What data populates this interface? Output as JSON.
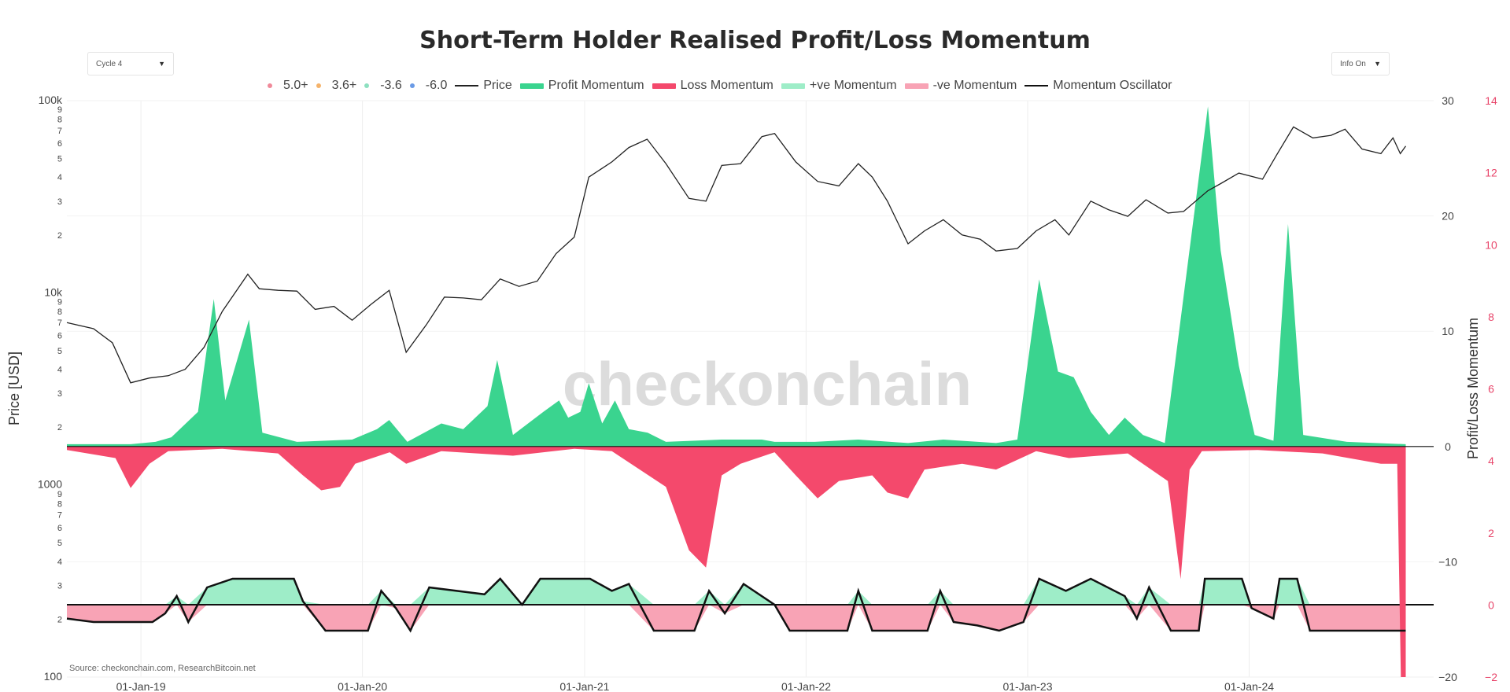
{
  "header": {
    "title": "Short-Term Holder Realised Profit/Loss Momentum",
    "cycle_select": "Cycle 4",
    "info_select": "Info On"
  },
  "legend": [
    {
      "label": "5.0+",
      "kind": "dot",
      "color": "#f08a9a"
    },
    {
      "label": "3.6+",
      "kind": "dot",
      "color": "#f5b36b"
    },
    {
      "label": "-3.6",
      "kind": "dot",
      "color": "#8de0c0"
    },
    {
      "label": "-6.0",
      "kind": "dot",
      "color": "#6a9be6"
    },
    {
      "label": "Price",
      "kind": "line",
      "color": "#222222"
    },
    {
      "label": "Profit Momentum",
      "kind": "thick",
      "color": "#3ad48f"
    },
    {
      "label": "Loss Momentum",
      "kind": "thick",
      "color": "#f4496c"
    },
    {
      "label": "+ve Momentum",
      "kind": "thick",
      "color": "#9eedc8"
    },
    {
      "label": "-ve Momentum",
      "kind": "thick",
      "color": "#f8a3b5"
    },
    {
      "label": "Momentum Oscillator",
      "kind": "line",
      "color": "#111111"
    }
  ],
  "watermark": "checkonchain",
  "source": "Source: checkonchain.com, ResearchBitcoin.net",
  "chart_data": {
    "type": "line",
    "x_axis": {
      "ticks": [
        "01-Jan-19",
        "01-Jan-20",
        "01-Jan-21",
        "01-Jan-22",
        "01-Jan-23",
        "01-Jan-24"
      ],
      "range": [
        "2018-09-01",
        "2024-10-31"
      ]
    },
    "left_axis": {
      "label": "Price [USD]",
      "scale": "log",
      "range": [
        100,
        100000
      ],
      "ticks": [
        "100k",
        "9",
        "8",
        "7",
        "6",
        "5",
        "4",
        "3",
        "2",
        "10k",
        "9",
        "8",
        "7",
        "6",
        "5",
        "4",
        "3",
        "2",
        "1000",
        "9",
        "8",
        "7",
        "6",
        "5",
        "4",
        "3",
        "2",
        "100"
      ]
    },
    "right_axis_1": {
      "range": [
        -20,
        30
      ],
      "ticks": [
        "30",
        "20",
        "10",
        "0",
        "−10",
        "−20"
      ]
    },
    "right_axis_2": {
      "label": "Profit/Loss Momentum",
      "color": "#e8456a",
      "range": [
        -2,
        14
      ],
      "ticks": [
        "14",
        "12",
        "10",
        "8",
        "6",
        "4",
        "2",
        "0",
        "−2"
      ]
    },
    "series": [
      {
        "name": "Price",
        "color": "#222222",
        "points": [
          [
            "2018-09-01",
            7000
          ],
          [
            "2018-10-15",
            6500
          ],
          [
            "2018-11-15",
            5500
          ],
          [
            "2018-12-15",
            3400
          ],
          [
            "2019-01-15",
            3600
          ],
          [
            "2019-02-15",
            3700
          ],
          [
            "2019-03-15",
            4000
          ],
          [
            "2019-04-15",
            5200
          ],
          [
            "2019-05-15",
            8000
          ],
          [
            "2019-06-26",
            12500
          ],
          [
            "2019-07-15",
            10500
          ],
          [
            "2019-08-15",
            10300
          ],
          [
            "2019-09-15",
            10200
          ],
          [
            "2019-10-15",
            8200
          ],
          [
            "2019-11-15",
            8500
          ],
          [
            "2019-12-15",
            7200
          ],
          [
            "2020-01-15",
            8700
          ],
          [
            "2020-02-14",
            10300
          ],
          [
            "2020-03-13",
            4900
          ],
          [
            "2020-04-15",
            6800
          ],
          [
            "2020-05-15",
            9500
          ],
          [
            "2020-06-15",
            9400
          ],
          [
            "2020-07-15",
            9200
          ],
          [
            "2020-08-15",
            11800
          ],
          [
            "2020-09-15",
            10800
          ],
          [
            "2020-10-15",
            11500
          ],
          [
            "2020-11-15",
            16000
          ],
          [
            "2020-12-15",
            19500
          ],
          [
            "2021-01-08",
            40000
          ],
          [
            "2021-02-15",
            48000
          ],
          [
            "2021-03-15",
            57000
          ],
          [
            "2021-04-14",
            63000
          ],
          [
            "2021-05-15",
            47000
          ],
          [
            "2021-06-22",
            31000
          ],
          [
            "2021-07-20",
            30000
          ],
          [
            "2021-08-15",
            46000
          ],
          [
            "2021-09-15",
            47000
          ],
          [
            "2021-10-20",
            65000
          ],
          [
            "2021-11-10",
            67500
          ],
          [
            "2021-12-15",
            48000
          ],
          [
            "2022-01-20",
            38000
          ],
          [
            "2022-02-24",
            36000
          ],
          [
            "2022-03-28",
            47000
          ],
          [
            "2022-04-20",
            40000
          ],
          [
            "2022-05-15",
            30000
          ],
          [
            "2022-06-18",
            18000
          ],
          [
            "2022-07-15",
            21000
          ],
          [
            "2022-08-15",
            24000
          ],
          [
            "2022-09-15",
            20000
          ],
          [
            "2022-10-15",
            19000
          ],
          [
            "2022-11-10",
            16500
          ],
          [
            "2022-12-15",
            17000
          ],
          [
            "2023-01-15",
            21000
          ],
          [
            "2023-02-15",
            24000
          ],
          [
            "2023-03-10",
            20000
          ],
          [
            "2023-04-15",
            30000
          ],
          [
            "2023-05-15",
            27000
          ],
          [
            "2023-06-15",
            25000
          ],
          [
            "2023-07-15",
            30500
          ],
          [
            "2023-08-20",
            26000
          ],
          [
            "2023-09-15",
            26500
          ],
          [
            "2023-10-25",
            34000
          ],
          [
            "2023-11-15",
            37000
          ],
          [
            "2023-12-15",
            42000
          ],
          [
            "2024-01-23",
            39000
          ],
          [
            "2024-02-15",
            52000
          ],
          [
            "2024-03-14",
            73000
          ],
          [
            "2024-04-15",
            64000
          ],
          [
            "2024-05-15",
            66000
          ],
          [
            "2024-06-07",
            71000
          ],
          [
            "2024-07-05",
            56000
          ],
          [
            "2024-08-05",
            53000
          ],
          [
            "2024-08-25",
            64000
          ],
          [
            "2024-09-06",
            53000
          ],
          [
            "2024-09-15",
            58000
          ]
        ]
      },
      {
        "name": "Profit Momentum",
        "color": "#3ad48f",
        "points": [
          [
            "2018-09-01",
            0.2
          ],
          [
            "2018-10-15",
            0.2
          ],
          [
            "2018-12-15",
            0.2
          ],
          [
            "2019-01-25",
            0.4
          ],
          [
            "2019-02-20",
            0.8
          ],
          [
            "2019-04-05",
            3.0
          ],
          [
            "2019-05-01",
            12.8
          ],
          [
            "2019-05-20",
            4.0
          ],
          [
            "2019-06-28",
            11.0
          ],
          [
            "2019-07-20",
            1.2
          ],
          [
            "2019-09-15",
            0.4
          ],
          [
            "2019-12-15",
            0.6
          ],
          [
            "2020-01-25",
            1.5
          ],
          [
            "2020-02-14",
            2.3
          ],
          [
            "2020-03-15",
            0.4
          ],
          [
            "2020-05-10",
            2.0
          ],
          [
            "2020-06-15",
            1.5
          ],
          [
            "2020-07-25",
            3.5
          ],
          [
            "2020-08-10",
            7.5
          ],
          [
            "2020-09-05",
            1.0
          ],
          [
            "2020-10-25",
            3.0
          ],
          [
            "2020-11-20",
            4.0
          ],
          [
            "2020-12-05",
            2.5
          ],
          [
            "2020-12-25",
            3.0
          ],
          [
            "2021-01-08",
            5.5
          ],
          [
            "2021-01-30",
            2.0
          ],
          [
            "2021-02-20",
            4.0
          ],
          [
            "2021-03-15",
            1.5
          ],
          [
            "2021-04-15",
            1.2
          ],
          [
            "2021-05-15",
            0.4
          ],
          [
            "2021-08-15",
            0.6
          ],
          [
            "2021-10-20",
            0.6
          ],
          [
            "2021-11-10",
            0.4
          ],
          [
            "2022-01-15",
            0.4
          ],
          [
            "2022-03-28",
            0.6
          ],
          [
            "2022-06-18",
            0.3
          ],
          [
            "2022-08-15",
            0.6
          ],
          [
            "2022-11-10",
            0.3
          ],
          [
            "2022-12-15",
            0.6
          ],
          [
            "2023-01-20",
            14.5
          ],
          [
            "2023-02-20",
            6.5
          ],
          [
            "2023-03-18",
            6.0
          ],
          [
            "2023-04-15",
            3.0
          ],
          [
            "2023-05-15",
            1.0
          ],
          [
            "2023-06-10",
            2.5
          ],
          [
            "2023-07-10",
            1.0
          ],
          [
            "2023-08-15",
            0.3
          ],
          [
            "2023-10-25",
            29.5
          ],
          [
            "2023-11-15",
            17.0
          ],
          [
            "2023-12-15",
            7.0
          ],
          [
            "2024-01-10",
            1.0
          ],
          [
            "2024-02-10",
            0.5
          ],
          [
            "2024-03-05",
            19.3
          ],
          [
            "2024-03-30",
            1.0
          ],
          [
            "2024-06-10",
            0.4
          ],
          [
            "2024-09-15",
            0.2
          ]
        ]
      },
      {
        "name": "Loss Momentum",
        "color": "#f4496c",
        "points": [
          [
            "2018-09-01",
            -0.3
          ],
          [
            "2018-11-20",
            -1.0
          ],
          [
            "2018-12-15",
            -3.6
          ],
          [
            "2019-01-15",
            -1.5
          ],
          [
            "2019-02-15",
            -0.4
          ],
          [
            "2019-05-15",
            -0.2
          ],
          [
            "2019-08-15",
            -0.6
          ],
          [
            "2019-09-25",
            -2.5
          ],
          [
            "2019-10-25",
            -3.8
          ],
          [
            "2019-11-25",
            -3.5
          ],
          [
            "2019-12-20",
            -1.5
          ],
          [
            "2020-02-15",
            -0.5
          ],
          [
            "2020-03-13",
            -1.5
          ],
          [
            "2020-05-10",
            -0.4
          ],
          [
            "2020-09-05",
            -0.8
          ],
          [
            "2020-12-15",
            -0.2
          ],
          [
            "2021-02-15",
            -0.4
          ],
          [
            "2021-05-15",
            -3.5
          ],
          [
            "2021-06-22",
            -9.0
          ],
          [
            "2021-07-20",
            -10.5
          ],
          [
            "2021-08-15",
            -2.5
          ],
          [
            "2021-09-15",
            -1.5
          ],
          [
            "2021-11-10",
            -0.5
          ],
          [
            "2021-12-15",
            -2.5
          ],
          [
            "2022-01-20",
            -4.5
          ],
          [
            "2022-02-24",
            -3.0
          ],
          [
            "2022-04-20",
            -2.5
          ],
          [
            "2022-05-15",
            -4.0
          ],
          [
            "2022-06-18",
            -4.5
          ],
          [
            "2022-07-15",
            -2.0
          ],
          [
            "2022-09-15",
            -1.5
          ],
          [
            "2022-11-10",
            -2.0
          ],
          [
            "2023-01-15",
            -0.4
          ],
          [
            "2023-03-10",
            -1.0
          ],
          [
            "2023-06-15",
            -0.6
          ],
          [
            "2023-08-20",
            -3.0
          ],
          [
            "2023-09-10",
            -11.5
          ],
          [
            "2023-09-25",
            -2.0
          ],
          [
            "2023-10-15",
            -0.4
          ],
          [
            "2024-01-15",
            -0.3
          ],
          [
            "2024-05-01",
            -0.6
          ],
          [
            "2024-08-05",
            -1.5
          ],
          [
            "2024-09-01",
            -1.5
          ],
          [
            "2024-09-07",
            -20
          ],
          [
            "2024-09-15",
            -20
          ]
        ]
      },
      {
        "name": "Momentum Oscillator",
        "color": "#111111",
        "points": [
          [
            "2018-09-01",
            -0.8
          ],
          [
            "2018-10-15",
            -1.0
          ],
          [
            "2019-01-20",
            -1.0
          ],
          [
            "2019-02-10",
            -0.5
          ],
          [
            "2019-03-01",
            0.5
          ],
          [
            "2019-03-20",
            -1.0
          ],
          [
            "2019-04-20",
            1.0
          ],
          [
            "2019-06-01",
            1.5
          ],
          [
            "2019-09-10",
            1.5
          ],
          [
            "2019-09-25",
            0.2
          ],
          [
            "2019-11-01",
            -1.5
          ],
          [
            "2020-01-10",
            -1.5
          ],
          [
            "2020-02-01",
            0.8
          ],
          [
            "2020-02-25",
            -0.2
          ],
          [
            "2020-03-20",
            -1.5
          ],
          [
            "2020-04-20",
            1.0
          ],
          [
            "2020-07-20",
            0.6
          ],
          [
            "2020-08-15",
            1.5
          ],
          [
            "2020-09-20",
            0.0
          ],
          [
            "2020-10-20",
            1.5
          ],
          [
            "2021-01-10",
            1.5
          ],
          [
            "2021-02-15",
            0.8
          ],
          [
            "2021-03-15",
            1.2
          ],
          [
            "2021-04-25",
            -1.5
          ],
          [
            "2021-07-01",
            -1.5
          ],
          [
            "2021-07-25",
            0.8
          ],
          [
            "2021-08-20",
            -0.5
          ],
          [
            "2021-09-20",
            1.2
          ],
          [
            "2021-11-10",
            0.0
          ],
          [
            "2021-12-05",
            -1.5
          ],
          [
            "2022-03-10",
            -1.5
          ],
          [
            "2022-03-28",
            0.8
          ],
          [
            "2022-04-20",
            -1.5
          ],
          [
            "2022-07-20",
            -1.5
          ],
          [
            "2022-08-10",
            0.8
          ],
          [
            "2022-09-01",
            -1.0
          ],
          [
            "2022-10-10",
            -1.2
          ],
          [
            "2022-11-15",
            -1.5
          ],
          [
            "2022-12-25",
            -1.0
          ],
          [
            "2023-01-20",
            1.5
          ],
          [
            "2023-03-05",
            0.8
          ],
          [
            "2023-04-15",
            1.5
          ],
          [
            "2023-06-10",
            0.5
          ],
          [
            "2023-06-30",
            -0.8
          ],
          [
            "2023-07-20",
            1.0
          ],
          [
            "2023-08-25",
            -1.5
          ],
          [
            "2023-10-10",
            -1.5
          ],
          [
            "2023-10-20",
            1.5
          ],
          [
            "2023-12-20",
            1.5
          ],
          [
            "2024-01-05",
            -0.2
          ],
          [
            "2024-02-10",
            -0.8
          ],
          [
            "2024-02-20",
            1.5
          ],
          [
            "2024-03-20",
            1.5
          ],
          [
            "2024-04-10",
            -1.5
          ],
          [
            "2024-09-15",
            -1.5
          ]
        ]
      }
    ],
    "grid": true
  }
}
